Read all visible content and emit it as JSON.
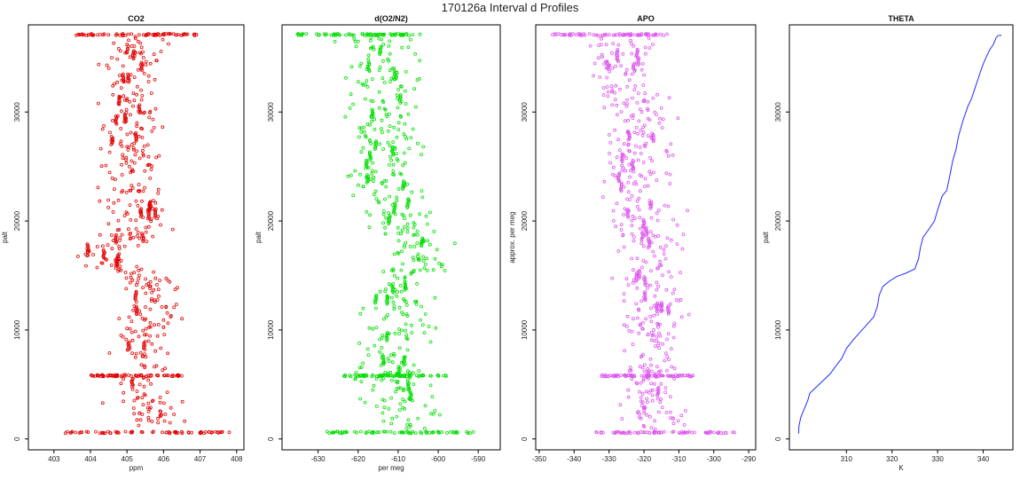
{
  "figure": {
    "suptitle": "170126a   Interval d Profiles"
  },
  "chart_data": [
    {
      "type": "scatter",
      "title": "CO2",
      "xlabel": "ppm",
      "ylabel": "palt",
      "xlim": [
        402.3,
        408.2
      ],
      "ylim": [
        -1000,
        38000
      ],
      "xticks": [
        403,
        404,
        405,
        406,
        407,
        408
      ],
      "yticks": [
        0,
        10000,
        20000,
        30000
      ],
      "color": "#e00000",
      "seed": 11,
      "profile": [
        [
          0,
          405.2
        ],
        [
          2000,
          405.8
        ],
        [
          4000,
          405.2
        ],
        [
          6000,
          405.7
        ],
        [
          8000,
          405.4
        ],
        [
          10000,
          405.5
        ],
        [
          12000,
          405.8
        ],
        [
          14000,
          405.6
        ],
        [
          15000,
          405.3
        ],
        [
          17000,
          404.1
        ],
        [
          18000,
          405.0
        ],
        [
          20000,
          405.4
        ],
        [
          22000,
          405.2
        ],
        [
          24000,
          404.9
        ],
        [
          26000,
          405.1
        ],
        [
          28000,
          405.0
        ],
        [
          30000,
          405.3
        ],
        [
          32000,
          405.1
        ],
        [
          34000,
          405.0
        ],
        [
          36000,
          405.3
        ],
        [
          37000,
          405.3
        ]
      ],
      "spread": 0.6,
      "n_points": 430,
      "bands": [
        [
          600,
          403.3,
          407.8
        ],
        [
          37100,
          403.6,
          406.9
        ],
        [
          5800,
          404.0,
          406.5
        ]
      ]
    },
    {
      "type": "scatter",
      "title": "d(O2/N2)",
      "xlabel": "per meg",
      "ylabel": "palt",
      "xlim": [
        -639,
        -584.5
      ],
      "ylim": [
        -1000,
        38000
      ],
      "xticks": [
        -630,
        -620,
        -610,
        -600,
        -590
      ],
      "yticks": [
        0,
        10000,
        20000,
        30000
      ],
      "color": "#00dd00",
      "seed": 23,
      "profile": [
        [
          0,
          -607
        ],
        [
          2000,
          -608
        ],
        [
          4000,
          -610
        ],
        [
          6000,
          -612
        ],
        [
          8000,
          -611
        ],
        [
          10000,
          -609
        ],
        [
          12000,
          -611
        ],
        [
          14000,
          -609
        ],
        [
          16000,
          -605
        ],
        [
          18000,
          -606
        ],
        [
          20000,
          -611
        ],
        [
          22000,
          -612
        ],
        [
          24000,
          -614
        ],
        [
          26000,
          -613
        ],
        [
          28000,
          -614
        ],
        [
          30000,
          -612
        ],
        [
          32000,
          -614
        ],
        [
          34000,
          -613
        ],
        [
          36000,
          -615
        ],
        [
          37000,
          -617
        ]
      ],
      "spread": 6.5,
      "n_points": 430,
      "bands": [
        [
          600,
          -628,
          -588
        ],
        [
          37100,
          -636,
          -604
        ],
        [
          5800,
          -624,
          -598
        ]
      ]
    },
    {
      "type": "scatter",
      "title": "APO",
      "xlabel": "",
      "ylabel": "approx. per meg",
      "xlim": [
        -351,
        -288
      ],
      "ylim": [
        -1000,
        38000
      ],
      "xticks": [
        -350,
        -340,
        -330,
        -320,
        -310,
        -300,
        -290
      ],
      "yticks": [
        0,
        10000,
        20000,
        30000
      ],
      "color": "#dd55ee",
      "seed": 37,
      "profile": [
        [
          0,
          -315
        ],
        [
          2000,
          -316
        ],
        [
          4000,
          -318
        ],
        [
          6000,
          -320
        ],
        [
          8000,
          -319
        ],
        [
          10000,
          -317
        ],
        [
          12000,
          -318
        ],
        [
          14000,
          -319
        ],
        [
          16000,
          -318
        ],
        [
          18000,
          -319
        ],
        [
          20000,
          -320
        ],
        [
          22000,
          -321
        ],
        [
          24000,
          -322
        ],
        [
          26000,
          -321
        ],
        [
          28000,
          -323
        ],
        [
          30000,
          -322
        ],
        [
          32000,
          -324
        ],
        [
          34000,
          -325
        ],
        [
          36000,
          -327
        ],
        [
          37000,
          -326
        ]
      ],
      "spread": 7.0,
      "n_points": 430,
      "bands": [
        [
          600,
          -335,
          -293
        ],
        [
          37100,
          -347,
          -313
        ],
        [
          5800,
          -333,
          -306
        ]
      ]
    },
    {
      "type": "line",
      "title": "THETA",
      "xlabel": "K",
      "ylabel": "palt",
      "xlim": [
        297.5,
        346.5
      ],
      "ylim": [
        -1000,
        38000
      ],
      "xticks": [
        310,
        320,
        330,
        340
      ],
      "yticks": [
        0,
        10000,
        20000,
        30000
      ],
      "color": "#1f2bff",
      "points": [
        [
          299.5,
          500
        ],
        [
          299.6,
          1200
        ],
        [
          300.0,
          2000
        ],
        [
          300.8,
          2800
        ],
        [
          301.5,
          3500
        ],
        [
          302.0,
          4200
        ],
        [
          303.5,
          4800
        ],
        [
          305.0,
          5400
        ],
        [
          306.5,
          6000
        ],
        [
          307.5,
          6600
        ],
        [
          309.0,
          7400
        ],
        [
          310.0,
          8300
        ],
        [
          311.5,
          9100
        ],
        [
          313.0,
          9800
        ],
        [
          314.5,
          10500
        ],
        [
          316.0,
          11200
        ],
        [
          316.8,
          12200
        ],
        [
          317.2,
          13200
        ],
        [
          318.0,
          14000
        ],
        [
          319.5,
          14500
        ],
        [
          321.0,
          14900
        ],
        [
          323.0,
          15200
        ],
        [
          325.0,
          15600
        ],
        [
          325.8,
          16500
        ],
        [
          326.2,
          17500
        ],
        [
          326.8,
          18500
        ],
        [
          328.0,
          19200
        ],
        [
          329.3,
          20000
        ],
        [
          330.0,
          21000
        ],
        [
          331.0,
          22300
        ],
        [
          332.0,
          22800
        ],
        [
          332.6,
          24000
        ],
        [
          333.3,
          25500
        ],
        [
          334.0,
          26500
        ],
        [
          334.6,
          27800
        ],
        [
          335.4,
          29000
        ],
        [
          336.6,
          30500
        ],
        [
          337.4,
          31200
        ],
        [
          338.2,
          32200
        ],
        [
          339.0,
          33200
        ],
        [
          339.8,
          34200
        ],
        [
          340.6,
          35000
        ],
        [
          341.4,
          35700
        ],
        [
          342.2,
          36200
        ],
        [
          342.8,
          36800
        ],
        [
          343.2,
          37000
        ],
        [
          344.0,
          37050
        ]
      ]
    }
  ]
}
